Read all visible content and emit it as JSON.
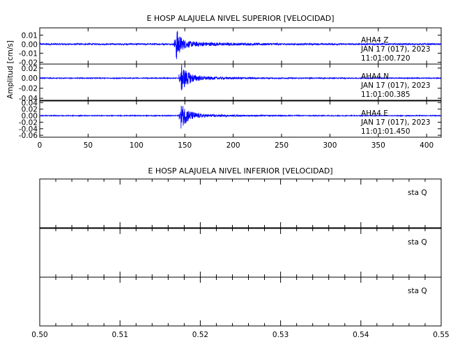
{
  "chart_data": [
    {
      "type": "line",
      "title": "E HOSP ALAJUELA NIVEL SUPERIOR [VELOCIDAD]",
      "ylabel": "Amplitud [cm/s]",
      "xlim": [
        0,
        415
      ],
      "x_ticks": [
        0,
        50,
        100,
        150,
        200,
        250,
        300,
        350,
        400
      ],
      "series_color": "#0000ff",
      "panels": [
        {
          "ylim": [
            -0.022,
            0.018
          ],
          "y_ticks": [
            0.01,
            0.0,
            -0.01,
            -0.02
          ],
          "y_tick_labels": [
            "0.01",
            "0.00",
            "-0.01",
            "-0.02"
          ],
          "annotation": [
            "AHA4 Z",
            "JAN 17 (017), 2023",
            "11:01:00.720"
          ],
          "signal": {
            "noise": 0.0008,
            "onset": 141,
            "peak": 0.017,
            "decay": 4.0,
            "coda": 0.003
          }
        },
        {
          "ylim": [
            -0.044,
            0.028
          ],
          "y_ticks": [
            0.02,
            0.0,
            -0.02,
            -0.04
          ],
          "y_tick_labels": [
            "0.02",
            "0.00",
            "-0.02",
            "-0.04"
          ],
          "annotation": [
            "AHA4 N",
            "JAN 17 (017), 2023",
            "11:01:00.385"
          ],
          "signal": {
            "noise": 0.0009,
            "onset": 146,
            "peak": 0.025,
            "decay": 7.0,
            "coda": 0.004
          }
        },
        {
          "ylim": [
            -0.066,
            0.045
          ],
          "y_ticks": [
            0.04,
            0.02,
            0.0,
            -0.02,
            -0.04,
            -0.06
          ],
          "y_tick_labels": [
            "0.04",
            "0.02",
            "0.00",
            "-0.02",
            "-0.04",
            "-0.06"
          ],
          "annotation": [
            "AHA4 E",
            "JAN 17 (017), 2023",
            "11:01:01.450"
          ],
          "signal": {
            "noise": 0.0012,
            "onset": 146,
            "peak": 0.035,
            "decay": 7.5,
            "coda": 0.005
          }
        }
      ]
    },
    {
      "type": "line",
      "title": "E HOSP ALAJUELA NIVEL INFERIOR [VELOCIDAD]",
      "xlim": [
        0.5,
        0.55
      ],
      "x_ticks": [
        0.5,
        0.51,
        0.52,
        0.53,
        0.54,
        0.55
      ],
      "x_tick_labels": [
        "0.50",
        "0.51",
        "0.52",
        "0.53",
        "0.54",
        "0.55"
      ],
      "panels": [
        {
          "annotation": "sta Q"
        },
        {
          "annotation": "sta Q"
        },
        {
          "annotation": "sta Q"
        }
      ]
    }
  ]
}
